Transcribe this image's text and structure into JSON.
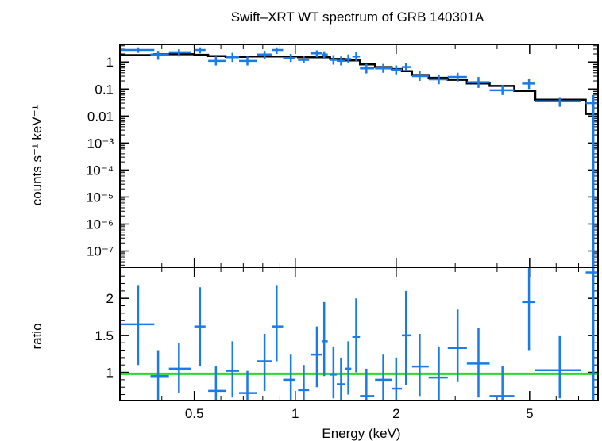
{
  "chart_data": {
    "type": "scatter",
    "title": "Swift–XRT WT spectrum of GRB 140301A",
    "xlabel": "Energy (keV)",
    "x_scale": "log",
    "xlim": [
      0.3,
      8.0
    ],
    "x_ticks": [
      {
        "value": 0.5,
        "label": "0.5"
      },
      {
        "value": 1,
        "label": "1"
      },
      {
        "value": 2,
        "label": "2"
      },
      {
        "value": 5,
        "label": "5"
      }
    ],
    "panels": [
      {
        "id": "spectrum",
        "ylabel": "counts s⁻¹ keV⁻¹",
        "y_scale": "log",
        "ylim": [
          2.5e-08,
          4.5
        ],
        "y_ticks": [
          {
            "value": 1,
            "label": "1"
          },
          {
            "value": 0.1,
            "label": "0.1"
          },
          {
            "value": 0.01,
            "label": "0.01"
          },
          {
            "value": 0.001,
            "label": "10⁻³"
          },
          {
            "value": 0.0001,
            "label": "10⁻⁴"
          },
          {
            "value": 1e-05,
            "label": "10⁻⁵"
          },
          {
            "value": 1e-06,
            "label": "10⁻⁶"
          },
          {
            "value": 1e-07,
            "label": "10⁻⁷"
          }
        ],
        "data_color": "#1a7be6",
        "model_color": "#000000",
        "data": [
          {
            "x": 0.34,
            "xlo": 0.3,
            "xhi": 0.38,
            "y": 2.8,
            "ylo": 2.2,
            "yhi": 3.5
          },
          {
            "x": 0.39,
            "xlo": 0.37,
            "xhi": 0.42,
            "y": 1.9,
            "ylo": 1.2,
            "yhi": 2.6
          },
          {
            "x": 0.45,
            "xlo": 0.42,
            "xhi": 0.49,
            "y": 2.3,
            "ylo": 1.6,
            "yhi": 3.0
          },
          {
            "x": 0.52,
            "xlo": 0.5,
            "xhi": 0.54,
            "y": 2.8,
            "ylo": 2.1,
            "yhi": 3.5
          },
          {
            "x": 0.58,
            "xlo": 0.55,
            "xhi": 0.62,
            "y": 1.1,
            "ylo": 0.75,
            "yhi": 1.6
          },
          {
            "x": 0.65,
            "xlo": 0.62,
            "xhi": 0.68,
            "y": 1.5,
            "ylo": 1.0,
            "yhi": 2.2
          },
          {
            "x": 0.72,
            "xlo": 0.68,
            "xhi": 0.77,
            "y": 1.1,
            "ylo": 0.75,
            "yhi": 1.6
          },
          {
            "x": 0.81,
            "xlo": 0.77,
            "xhi": 0.85,
            "y": 1.9,
            "ylo": 1.3,
            "yhi": 2.6
          },
          {
            "x": 0.88,
            "xlo": 0.85,
            "xhi": 0.92,
            "y": 2.8,
            "ylo": 2.0,
            "yhi": 3.5
          },
          {
            "x": 0.97,
            "xlo": 0.92,
            "xhi": 1.0,
            "y": 1.4,
            "ylo": 1.0,
            "yhi": 2.0
          },
          {
            "x": 1.06,
            "xlo": 1.02,
            "xhi": 1.1,
            "y": 1.2,
            "ylo": 0.9,
            "yhi": 1.7
          },
          {
            "x": 1.16,
            "xlo": 1.11,
            "xhi": 1.2,
            "y": 2.1,
            "ylo": 1.5,
            "yhi": 2.7
          },
          {
            "x": 1.22,
            "xlo": 1.2,
            "xhi": 1.25,
            "y": 1.9,
            "ylo": 1.3,
            "yhi": 2.5
          },
          {
            "x": 1.3,
            "xlo": 1.27,
            "xhi": 1.33,
            "y": 1.2,
            "ylo": 0.8,
            "yhi": 1.8
          },
          {
            "x": 1.37,
            "xlo": 1.33,
            "xhi": 1.41,
            "y": 1.1,
            "ylo": 0.75,
            "yhi": 1.6
          },
          {
            "x": 1.44,
            "xlo": 1.41,
            "xhi": 1.47,
            "y": 1.3,
            "ylo": 0.9,
            "yhi": 1.9
          },
          {
            "x": 1.52,
            "xlo": 1.48,
            "xhi": 1.56,
            "y": 1.6,
            "ylo": 1.1,
            "yhi": 2.3
          },
          {
            "x": 1.63,
            "xlo": 1.56,
            "xhi": 1.72,
            "y": 0.58,
            "ylo": 0.38,
            "yhi": 0.85
          },
          {
            "x": 1.83,
            "xlo": 1.73,
            "xhi": 1.94,
            "y": 0.58,
            "ylo": 0.4,
            "yhi": 0.85
          },
          {
            "x": 2.0,
            "xlo": 1.94,
            "xhi": 2.08,
            "y": 0.52,
            "ylo": 0.35,
            "yhi": 0.75
          },
          {
            "x": 2.14,
            "xlo": 2.08,
            "xhi": 2.22,
            "y": 0.65,
            "ylo": 0.45,
            "yhi": 0.9
          },
          {
            "x": 2.35,
            "xlo": 2.23,
            "xhi": 2.5,
            "y": 0.3,
            "ylo": 0.2,
            "yhi": 0.45
          },
          {
            "x": 2.68,
            "xlo": 2.5,
            "xhi": 2.85,
            "y": 0.23,
            "ylo": 0.15,
            "yhi": 0.33
          },
          {
            "x": 3.05,
            "xlo": 2.85,
            "xhi": 3.25,
            "y": 0.28,
            "ylo": 0.19,
            "yhi": 0.4
          },
          {
            "x": 3.52,
            "xlo": 3.25,
            "xhi": 3.8,
            "y": 0.18,
            "ylo": 0.11,
            "yhi": 0.28
          },
          {
            "x": 4.15,
            "xlo": 3.8,
            "xhi": 4.5,
            "y": 0.09,
            "ylo": 0.06,
            "yhi": 0.14
          },
          {
            "x": 4.98,
            "xlo": 4.75,
            "xhi": 5.2,
            "y": 0.16,
            "ylo": 0.1,
            "yhi": 0.24
          },
          {
            "x": 6.15,
            "xlo": 5.2,
            "xhi": 7.1,
            "y": 0.035,
            "ylo": 0.022,
            "yhi": 0.05
          },
          {
            "x": 7.75,
            "xlo": 7.35,
            "xhi": 8.0,
            "y": 0.03,
            "ylo": 2.5e-08,
            "yhi": 0.06
          }
        ],
        "model": [
          {
            "x0": 0.3,
            "x1": 0.38,
            "y": 1.8
          },
          {
            "x0": 0.38,
            "x1": 0.5,
            "y": 1.95
          },
          {
            "x0": 0.5,
            "x1": 0.55,
            "y": 1.85
          },
          {
            "x0": 0.55,
            "x1": 0.62,
            "y": 1.65
          },
          {
            "x0": 0.62,
            "x1": 0.72,
            "y": 1.55
          },
          {
            "x0": 0.72,
            "x1": 1.02,
            "y": 1.6
          },
          {
            "x0": 1.02,
            "x1": 1.27,
            "y": 1.5
          },
          {
            "x0": 1.27,
            "x1": 1.41,
            "y": 1.3
          },
          {
            "x0": 1.41,
            "x1": 1.56,
            "y": 1.15
          },
          {
            "x0": 1.56,
            "x1": 1.73,
            "y": 0.82
          },
          {
            "x0": 1.73,
            "x1": 1.94,
            "y": 0.65
          },
          {
            "x0": 1.94,
            "x1": 2.08,
            "y": 0.55
          },
          {
            "x0": 2.08,
            "x1": 2.23,
            "y": 0.46
          },
          {
            "x0": 2.23,
            "x1": 2.5,
            "y": 0.33
          },
          {
            "x0": 2.5,
            "x1": 2.85,
            "y": 0.26
          },
          {
            "x0": 2.85,
            "x1": 3.25,
            "y": 0.22
          },
          {
            "x0": 3.25,
            "x1": 3.8,
            "y": 0.16
          },
          {
            "x0": 3.8,
            "x1": 4.5,
            "y": 0.13
          },
          {
            "x0": 4.5,
            "x1": 5.2,
            "y": 0.085
          },
          {
            "x0": 5.2,
            "x1": 7.35,
            "y": 0.04
          },
          {
            "x0": 7.35,
            "x1": 8.0,
            "y": 0.012
          }
        ]
      },
      {
        "id": "ratio",
        "ylabel": "ratio",
        "y_scale": "linear",
        "ylim": [
          0.62,
          2.42
        ],
        "y_ticks": [
          {
            "value": 1,
            "label": "1"
          },
          {
            "value": 1.5,
            "label": "1.5"
          },
          {
            "value": 2,
            "label": "2"
          }
        ],
        "reference_line": {
          "y": 0.98,
          "color": "#22dd22"
        },
        "data_color": "#1a7be6",
        "data": [
          {
            "x": 0.34,
            "xlo": 0.3,
            "xhi": 0.38,
            "y": 1.65,
            "ylo": 1.1,
            "yhi": 2.18
          },
          {
            "x": 0.39,
            "xlo": 0.37,
            "xhi": 0.42,
            "y": 0.95,
            "ylo": 0.63,
            "yhi": 1.3
          },
          {
            "x": 0.45,
            "xlo": 0.42,
            "xhi": 0.49,
            "y": 1.05,
            "ylo": 0.72,
            "yhi": 1.4
          },
          {
            "x": 0.52,
            "xlo": 0.5,
            "xhi": 0.54,
            "y": 1.62,
            "ylo": 1.08,
            "yhi": 2.15
          },
          {
            "x": 0.58,
            "xlo": 0.55,
            "xhi": 0.62,
            "y": 0.75,
            "ylo": 0.62,
            "yhi": 1.08
          },
          {
            "x": 0.65,
            "xlo": 0.62,
            "xhi": 0.68,
            "y": 1.02,
            "ylo": 0.66,
            "yhi": 1.42
          },
          {
            "x": 0.72,
            "xlo": 0.68,
            "xhi": 0.77,
            "y": 0.72,
            "ylo": 0.62,
            "yhi": 1.02
          },
          {
            "x": 0.81,
            "xlo": 0.77,
            "xhi": 0.85,
            "y": 1.15,
            "ylo": 0.75,
            "yhi": 1.52
          },
          {
            "x": 0.88,
            "xlo": 0.85,
            "xhi": 0.92,
            "y": 1.62,
            "ylo": 1.15,
            "yhi": 2.18
          },
          {
            "x": 0.97,
            "xlo": 0.92,
            "xhi": 1.0,
            "y": 0.9,
            "ylo": 0.62,
            "yhi": 1.25
          },
          {
            "x": 1.06,
            "xlo": 1.02,
            "xhi": 1.1,
            "y": 0.76,
            "ylo": 0.62,
            "yhi": 1.1
          },
          {
            "x": 1.16,
            "xlo": 1.11,
            "xhi": 1.2,
            "y": 1.24,
            "ylo": 0.8,
            "yhi": 1.62
          },
          {
            "x": 1.22,
            "xlo": 1.2,
            "xhi": 1.25,
            "y": 1.42,
            "ylo": 0.95,
            "yhi": 1.95
          },
          {
            "x": 1.3,
            "xlo": 1.27,
            "xhi": 1.33,
            "y": 0.97,
            "ylo": 0.65,
            "yhi": 1.35
          },
          {
            "x": 1.37,
            "xlo": 1.33,
            "xhi": 1.41,
            "y": 0.84,
            "ylo": 0.62,
            "yhi": 1.2
          },
          {
            "x": 1.44,
            "xlo": 1.41,
            "xhi": 1.47,
            "y": 1.05,
            "ylo": 0.7,
            "yhi": 1.42
          },
          {
            "x": 1.52,
            "xlo": 1.48,
            "xhi": 1.56,
            "y": 1.48,
            "ylo": 1.0,
            "yhi": 2.0
          },
          {
            "x": 1.63,
            "xlo": 1.56,
            "xhi": 1.72,
            "y": 0.68,
            "ylo": 0.62,
            "yhi": 1.05
          },
          {
            "x": 1.83,
            "xlo": 1.73,
            "xhi": 1.94,
            "y": 0.9,
            "ylo": 0.62,
            "yhi": 1.25
          },
          {
            "x": 2.0,
            "xlo": 1.94,
            "xhi": 2.08,
            "y": 0.78,
            "ylo": 0.62,
            "yhi": 1.2
          },
          {
            "x": 2.14,
            "xlo": 2.08,
            "xhi": 2.22,
            "y": 1.5,
            "ylo": 0.83,
            "yhi": 2.1
          },
          {
            "x": 2.35,
            "xlo": 2.23,
            "xhi": 2.5,
            "y": 1.08,
            "ylo": 0.68,
            "yhi": 1.52
          },
          {
            "x": 2.68,
            "xlo": 2.5,
            "xhi": 2.85,
            "y": 0.93,
            "ylo": 0.62,
            "yhi": 1.35
          },
          {
            "x": 3.05,
            "xlo": 2.85,
            "xhi": 3.25,
            "y": 1.33,
            "ylo": 0.88,
            "yhi": 1.85
          },
          {
            "x": 3.52,
            "xlo": 3.25,
            "xhi": 3.8,
            "y": 1.12,
            "ylo": 0.66,
            "yhi": 1.6
          },
          {
            "x": 4.15,
            "xlo": 3.8,
            "xhi": 4.5,
            "y": 0.68,
            "ylo": 0.62,
            "yhi": 1.08
          },
          {
            "x": 4.98,
            "xlo": 4.75,
            "xhi": 5.2,
            "y": 1.95,
            "ylo": 1.3,
            "yhi": 2.42
          },
          {
            "x": 6.15,
            "xlo": 5.2,
            "xhi": 7.1,
            "y": 1.03,
            "ylo": 0.65,
            "yhi": 1.5
          },
          {
            "x": 7.75,
            "xlo": 7.35,
            "xhi": 8.0,
            "y": 2.35,
            "ylo": 0.62,
            "yhi": 2.42
          }
        ]
      }
    ]
  }
}
